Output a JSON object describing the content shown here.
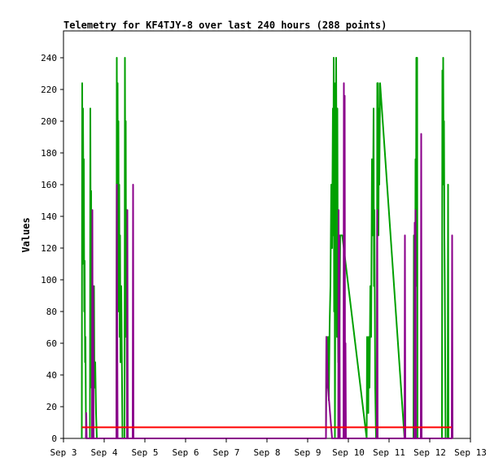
{
  "chart_data": {
    "type": "line",
    "title": "Telemetry for KF4TJY-8 over last 240 hours (288 points)",
    "xlabel": "",
    "ylabel": "Values",
    "x_ticks": [
      "Sep 3",
      "Sep 4",
      "Sep 5",
      "Sep 6",
      "Sep 7",
      "Sep 8",
      "Sep 9",
      "Sep 10",
      "Sep 11",
      "Sep 12",
      "Sep 13"
    ],
    "y_ticks": [
      0,
      20,
      40,
      60,
      80,
      100,
      120,
      140,
      160,
      180,
      200,
      220,
      240
    ],
    "xlim": [
      3,
      13
    ],
    "ylim": [
      0,
      255
    ],
    "grid": false,
    "legend": "none",
    "series": [
      {
        "color": "#00a000",
        "points": [
          [
            3.45,
            0
          ],
          [
            3.46,
            224
          ],
          [
            3.47,
            110
          ],
          [
            3.48,
            208
          ],
          [
            3.49,
            145
          ],
          [
            3.5,
            176
          ],
          [
            3.51,
            80
          ],
          [
            3.52,
            112
          ],
          [
            3.53,
            48
          ],
          [
            3.54,
            64
          ],
          [
            3.55,
            16
          ],
          [
            3.56,
            0
          ],
          [
            3.65,
            0
          ],
          [
            3.66,
            208
          ],
          [
            3.67,
            96
          ],
          [
            3.68,
            156
          ],
          [
            3.69,
            32
          ],
          [
            3.7,
            120
          ],
          [
            3.71,
            48
          ],
          [
            3.72,
            80
          ],
          [
            3.73,
            16
          ],
          [
            3.75,
            96
          ],
          [
            3.76,
            32
          ],
          [
            3.78,
            48
          ],
          [
            3.8,
            16
          ],
          [
            3.82,
            0
          ],
          [
            4.3,
            0
          ],
          [
            4.31,
            240
          ],
          [
            4.32,
            120
          ],
          [
            4.33,
            224
          ],
          [
            4.34,
            80
          ],
          [
            4.35,
            200
          ],
          [
            4.36,
            96
          ],
          [
            4.37,
            160
          ],
          [
            4.38,
            64
          ],
          [
            4.39,
            128
          ],
          [
            4.4,
            48
          ],
          [
            4.42,
            96
          ],
          [
            4.44,
            32
          ],
          [
            4.45,
            0
          ],
          [
            4.5,
            0
          ],
          [
            4.51,
            240
          ],
          [
            4.52,
            128
          ],
          [
            4.53,
            200
          ],
          [
            4.54,
            64
          ],
          [
            4.55,
            144
          ],
          [
            4.56,
            0
          ],
          [
            9.45,
            0
          ],
          [
            9.46,
            64
          ],
          [
            9.47,
            48
          ],
          [
            9.48,
            32
          ],
          [
            9.5,
            64
          ],
          [
            9.52,
            24
          ],
          [
            9.54,
            72
          ],
          [
            9.56,
            96
          ],
          [
            9.58,
            160
          ],
          [
            9.6,
            120
          ],
          [
            9.62,
            208
          ],
          [
            9.63,
            128
          ],
          [
            9.64,
            240
          ],
          [
            9.65,
            80
          ],
          [
            9.66,
            224
          ],
          [
            9.67,
            0
          ],
          [
            9.68,
            96
          ],
          [
            9.7,
            240
          ],
          [
            9.71,
            160
          ],
          [
            9.72,
            64
          ],
          [
            9.73,
            208
          ],
          [
            9.74,
            112
          ],
          [
            9.75,
            48
          ],
          [
            9.76,
            128
          ],
          [
            9.78,
            64
          ],
          [
            9.8,
            128
          ],
          [
            9.85,
            128
          ],
          [
            10.45,
            0
          ],
          [
            10.46,
            64
          ],
          [
            10.47,
            32
          ],
          [
            10.48,
            48
          ],
          [
            10.49,
            16
          ],
          [
            10.5,
            64
          ],
          [
            10.52,
            32
          ],
          [
            10.54,
            96
          ],
          [
            10.56,
            64
          ],
          [
            10.58,
            176
          ],
          [
            10.6,
            128
          ],
          [
            10.62,
            208
          ],
          [
            10.63,
            96
          ],
          [
            10.64,
            144
          ],
          [
            10.66,
            32
          ],
          [
            10.68,
            0
          ],
          [
            10.7,
            0
          ],
          [
            10.71,
            224
          ],
          [
            10.72,
            160
          ],
          [
            10.73,
            224
          ],
          [
            10.74,
            128
          ],
          [
            10.75,
            208
          ],
          [
            10.76,
            160
          ],
          [
            10.78,
            224
          ],
          [
            11.38,
            0
          ],
          [
            11.5,
            0
          ],
          [
            11.6,
            0
          ],
          [
            11.61,
            128
          ],
          [
            11.62,
            80
          ],
          [
            11.63,
            100
          ],
          [
            11.64,
            48
          ],
          [
            11.65,
            176
          ],
          [
            11.66,
            96
          ],
          [
            11.67,
            240
          ],
          [
            11.68,
            160
          ],
          [
            11.69,
            240
          ],
          [
            11.7,
            0
          ],
          [
            12.28,
            0
          ],
          [
            12.3,
            0
          ],
          [
            12.31,
            232
          ],
          [
            12.32,
            160
          ],
          [
            12.33,
            240
          ],
          [
            12.34,
            176
          ],
          [
            12.35,
            200
          ],
          [
            12.36,
            128
          ],
          [
            12.37,
            96
          ],
          [
            12.38,
            48
          ],
          [
            12.39,
            0
          ],
          [
            12.44,
            0
          ],
          [
            12.45,
            160
          ],
          [
            12.46,
            0
          ]
        ]
      },
      {
        "color": "#8b008b",
        "points": [
          [
            3.55,
            0
          ],
          [
            3.56,
            16
          ],
          [
            3.57,
            0
          ],
          [
            3.7,
            0
          ],
          [
            3.71,
            144
          ],
          [
            3.72,
            0
          ],
          [
            3.73,
            96
          ],
          [
            3.74,
            0
          ],
          [
            4.3,
            0
          ],
          [
            4.31,
            160
          ],
          [
            4.32,
            80
          ],
          [
            4.33,
            0
          ],
          [
            4.56,
            0
          ],
          [
            4.57,
            144
          ],
          [
            4.58,
            0
          ],
          [
            4.7,
            0
          ],
          [
            4.71,
            160
          ],
          [
            4.72,
            0
          ],
          [
            9.45,
            0
          ],
          [
            9.46,
            64
          ],
          [
            9.48,
            48
          ],
          [
            9.5,
            32
          ],
          [
            9.55,
            16
          ],
          [
            9.6,
            0
          ],
          [
            9.75,
            0
          ],
          [
            9.76,
            144
          ],
          [
            9.77,
            0
          ],
          [
            9.78,
            128
          ],
          [
            9.79,
            0
          ],
          [
            9.88,
            0
          ],
          [
            9.89,
            224
          ],
          [
            9.9,
            0
          ],
          [
            9.91,
            216
          ],
          [
            9.92,
            0
          ],
          [
            9.93,
            60
          ],
          [
            9.94,
            0
          ],
          [
            10.7,
            0
          ],
          [
            10.71,
            144
          ],
          [
            10.72,
            0
          ],
          [
            11.38,
            0
          ],
          [
            11.39,
            128
          ],
          [
            11.4,
            0
          ],
          [
            11.62,
            0
          ],
          [
            11.63,
            136
          ],
          [
            11.64,
            0
          ],
          [
            11.65,
            144
          ],
          [
            11.66,
            0
          ],
          [
            11.78,
            0
          ],
          [
            11.79,
            192
          ],
          [
            11.8,
            0
          ],
          [
            12.54,
            0
          ],
          [
            12.55,
            128
          ],
          [
            12.56,
            0
          ]
        ]
      },
      {
        "color": "#ff0000",
        "points": [
          [
            3.45,
            7
          ],
          [
            12.54,
            7
          ]
        ]
      }
    ]
  }
}
